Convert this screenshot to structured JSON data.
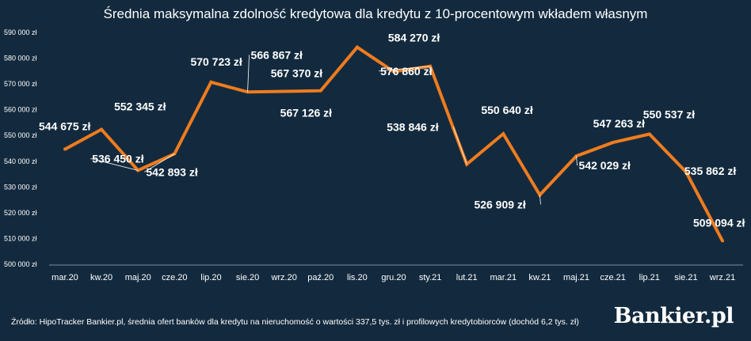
{
  "chart_data": {
    "type": "line",
    "title": "Średnia maksymalna zdolność kredytowa dla kredytu z 10-procentowym wkładem własnym",
    "categories": [
      "mar.20",
      "kw.20",
      "maj.20",
      "cze.20",
      "lip.20",
      "sie.20",
      "wrz.20",
      "paź.20",
      "lis.20",
      "gru.20",
      "sty.21",
      "lut.21",
      "mar.21",
      "kw.21",
      "maj.21",
      "cze.21",
      "lip.21",
      "sie.21",
      "wrz.21"
    ],
    "values": [
      544675,
      552345,
      536450,
      542893,
      570723,
      566867,
      567126,
      567370,
      584270,
      574800,
      576860,
      538846,
      550640,
      526909,
      542029,
      547263,
      550537,
      535862,
      509094
    ],
    "data_labels": [
      "544 675 zł",
      "552 345 zł",
      "536 450 zł",
      "542 893 zł",
      "570 723 zł",
      "566 867 zł",
      "567 126 zł",
      "567 370 zł",
      "584 270 zł",
      "",
      "576 860 zł",
      "538 846 zł",
      "550 640 zł",
      "526 909 zł",
      "542 029 zł",
      "547 263 zł",
      "550 537 zł",
      "535 862 zł",
      "509 094 zł"
    ],
    "yticks": [
      "500 000 zł",
      "510 000 zł",
      "520 000 zł",
      "530 000 zł",
      "540 000 zł",
      "550 000 zł",
      "560 000 zł",
      "570 000 zł",
      "580 000 zł",
      "590 000 zł"
    ],
    "ylim": [
      500000,
      590000
    ],
    "grid": false,
    "line_color": "#f07c1e",
    "label_color": "#ffffff",
    "background": "#132a3e"
  },
  "source": "Źródło: HipoTracker Bankier.pl, średnia ofert banków dla kredytu na nieruchomość o wartości 337,5 tys. zł i profilowych kredytobiorców (dochód 6,2 tys. zł)",
  "brand": "Bankier.pl"
}
